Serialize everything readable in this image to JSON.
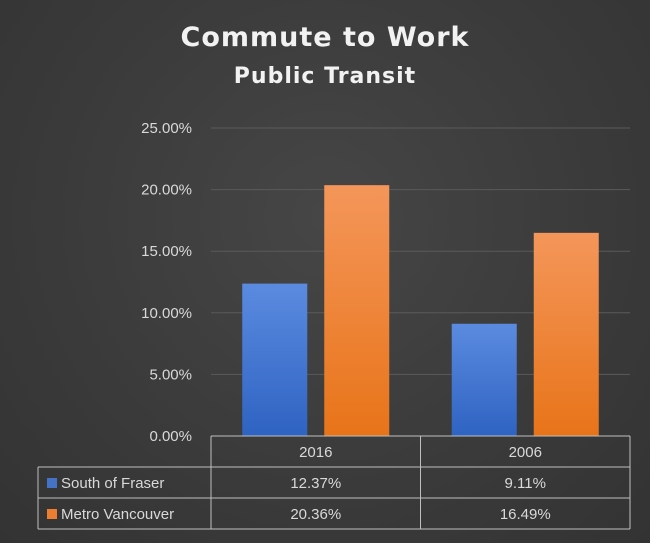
{
  "chart_data": {
    "type": "bar",
    "title": "Commute to Work",
    "subtitle": "Public Transit",
    "categories": [
      "2016",
      "2006"
    ],
    "series": [
      {
        "name": "South of Fraser",
        "values": [
          12.37,
          9.11
        ],
        "labels": [
          "12.37%",
          "9.11%"
        ],
        "color": "#4472c4"
      },
      {
        "name": "Metro Vancouver",
        "values": [
          20.36,
          16.49
        ],
        "labels": [
          "20.36%",
          "16.49%"
        ],
        "color": "#ed7d31"
      }
    ],
    "y_ticks": [
      "0.00%",
      "5.00%",
      "10.00%",
      "15.00%",
      "20.00%",
      "25.00%"
    ],
    "ylim": [
      0,
      25
    ],
    "grid": true,
    "legend": "data-table"
  }
}
